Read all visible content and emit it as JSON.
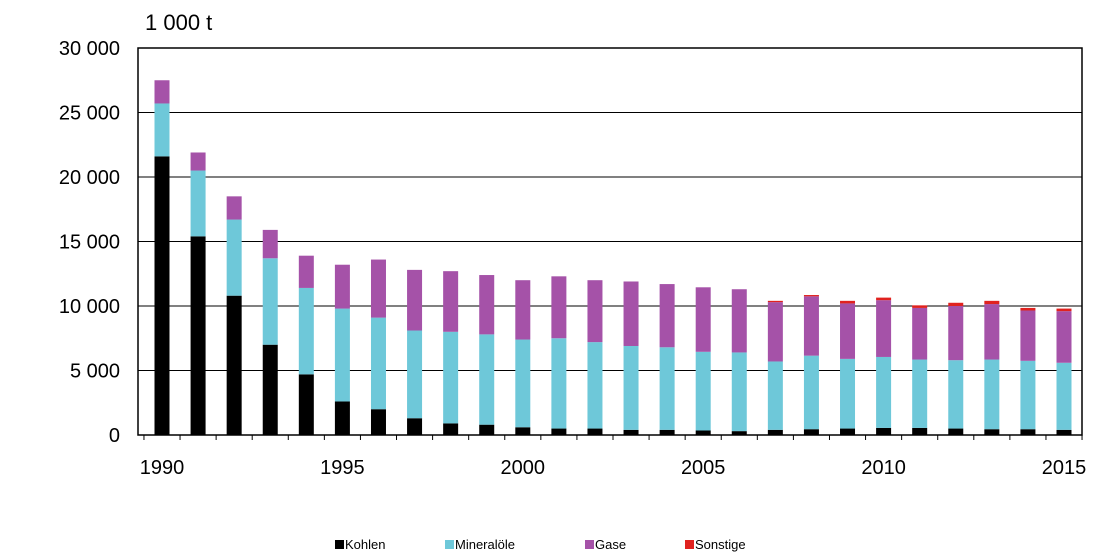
{
  "chart_data": {
    "type": "bar",
    "stacked": true,
    "unit_label": "1 000 t",
    "x_ticks": [
      "1990",
      "1995",
      "2000",
      "2005",
      "2010",
      "2015"
    ],
    "y_ticks": [
      "0",
      "5 000",
      "10 000",
      "15 000",
      "20 000",
      "25 000",
      "30 000"
    ],
    "ylim": [
      0,
      30000
    ],
    "grid": true,
    "legend_position": "bottom",
    "categories": [
      1990,
      1991,
      1992,
      1993,
      1994,
      1995,
      1996,
      1997,
      1998,
      1999,
      2000,
      2001,
      2002,
      2003,
      2004,
      2005,
      2006,
      2007,
      2008,
      2009,
      2010,
      2011,
      2012,
      2013,
      2014,
      2015
    ],
    "series": [
      {
        "name": "Kohlen",
        "color": "#000000",
        "values": [
          21600,
          15400,
          10800,
          7000,
          4700,
          2600,
          2000,
          1300,
          900,
          800,
          600,
          500,
          500,
          400,
          400,
          350,
          300,
          400,
          450,
          500,
          550,
          550,
          500,
          450,
          450,
          400
        ]
      },
      {
        "name": "Mineralöle",
        "color": "#6ec8d9",
        "values": [
          4100,
          5100,
          5900,
          6700,
          6700,
          7200,
          7100,
          6800,
          7100,
          7000,
          6800,
          7000,
          6700,
          6500,
          6400,
          6100,
          6100,
          5300,
          5700,
          5400,
          5500,
          5300,
          5300,
          5400,
          5300,
          5200
        ]
      },
      {
        "name": "Gase",
        "color": "#a552a8",
        "values": [
          1800,
          1400,
          1800,
          2200,
          2500,
          3400,
          4500,
          4700,
          4700,
          4600,
          4600,
          4800,
          4800,
          5000,
          4900,
          5000,
          4900,
          4600,
          4600,
          4300,
          4400,
          4000,
          4200,
          4300,
          3900,
          4000
        ]
      },
      {
        "name": "Sonstige",
        "color": "#e0221f",
        "values": [
          0,
          0,
          0,
          0,
          0,
          0,
          0,
          0,
          0,
          0,
          0,
          0,
          0,
          0,
          0,
          0,
          0,
          100,
          100,
          200,
          200,
          200,
          250,
          250,
          200,
          200
        ]
      }
    ]
  }
}
